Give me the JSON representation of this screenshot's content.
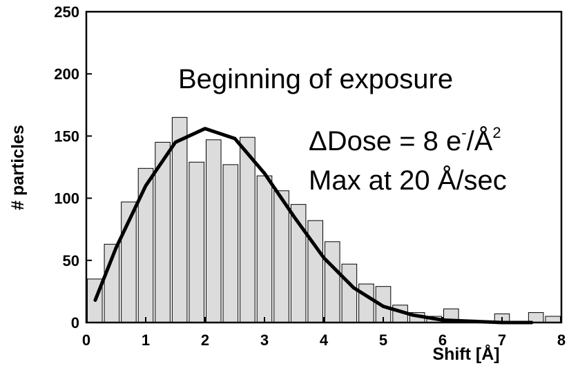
{
  "chart_data": {
    "type": "histogram",
    "xlabel": "Shift [Å]",
    "ylabel": "# particles",
    "bins": [
      0,
      0.2857,
      0.5714,
      0.8571,
      1.1429,
      1.4286,
      1.7143,
      2,
      2.2857,
      2.5714,
      2.8571,
      3.1429,
      3.4286,
      3.7143,
      4,
      4.2857,
      4.5714,
      4.8571,
      5.1429,
      5.4286,
      5.7143,
      6,
      6.2857,
      6.5714,
      6.8571,
      7.1429,
      7.4286,
      7.7143,
      8
    ],
    "values": [
      35,
      63,
      97,
      124,
      145,
      165,
      129,
      147,
      127,
      149,
      118,
      106,
      95,
      82,
      65,
      47,
      31,
      29,
      14,
      8,
      5,
      11,
      2,
      1,
      7,
      1,
      8,
      5
    ],
    "color": "#dcdcdc",
    "fit": {
      "x": [
        0.15,
        0.5,
        1,
        1.5,
        2,
        2.5,
        3,
        3.5,
        4,
        4.5,
        5,
        5.5,
        6,
        6.5,
        7,
        7.5
      ],
      "values": [
        18,
        60,
        110,
        145,
        156,
        148,
        120,
        85,
        52,
        28,
        13,
        6,
        2,
        1,
        0,
        0
      ],
      "color": "#000000"
    },
    "annotations": [
      [
        "Beginning of exposure"
      ],
      [
        "ΔDose = 8 e",
        "-",
        "/Å",
        "2"
      ],
      [
        "Max at 20 Å/sec"
      ]
    ],
    "xlim": [
      0,
      8
    ],
    "xticks": [
      0,
      1,
      2,
      3,
      4,
      5,
      6,
      7,
      8
    ],
    "ylim": [
      0,
      250
    ],
    "yticks": [
      0,
      50,
      100,
      150,
      200,
      250
    ]
  }
}
